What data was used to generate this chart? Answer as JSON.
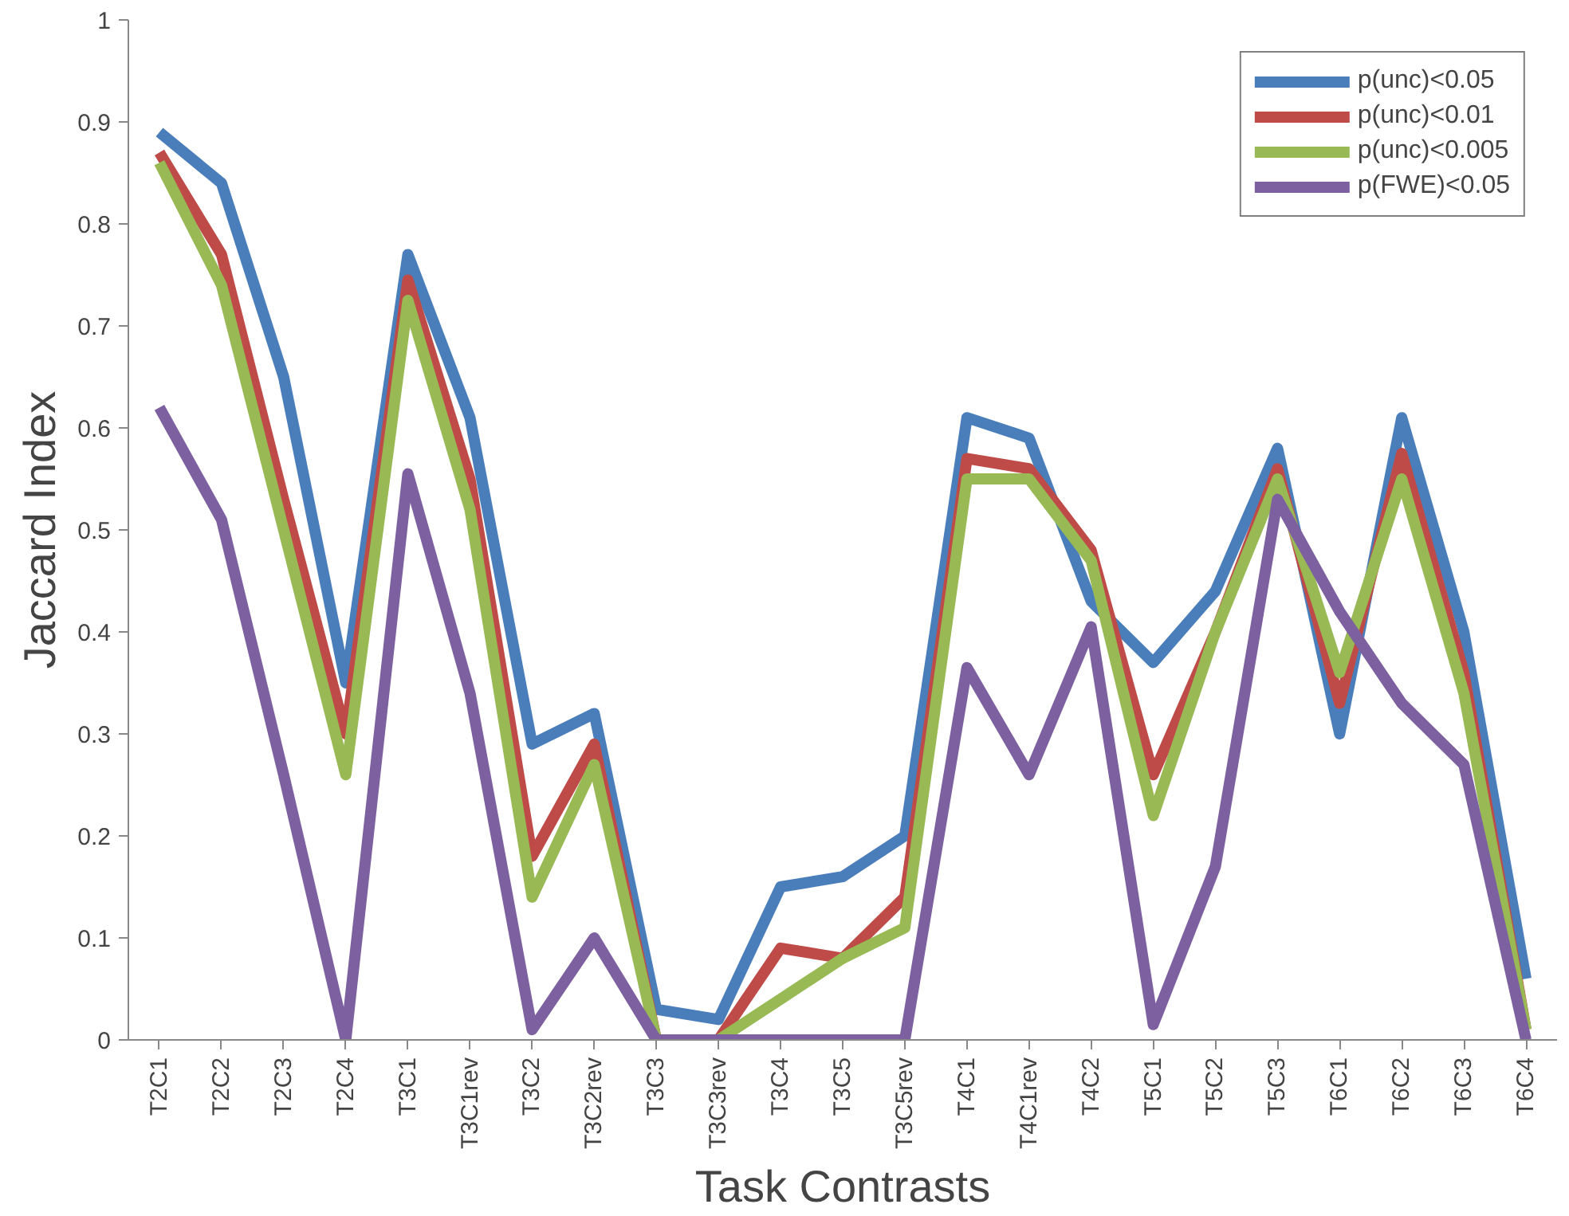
{
  "chart_data": {
    "type": "line",
    "xlabel": "Task Contrasts",
    "ylabel": "Jaccard Index",
    "categories": [
      "T2C1",
      "T2C2",
      "T2C3",
      "T2C4",
      "T3C1",
      "T3C1rev",
      "T3C2",
      "T3C2rev",
      "T3C3",
      "T3C3rev",
      "T3C4",
      "T3C5",
      "T3C5rev",
      "T4C1",
      "T4C1rev",
      "T4C2",
      "T5C1",
      "T5C2",
      "T5C3",
      "T6C1",
      "T6C2",
      "T6C3",
      "T6C4"
    ],
    "series": [
      {
        "name": "p(unc)<0.05",
        "color": "#4a7ebb",
        "values": [
          0.89,
          0.84,
          0.65,
          0.35,
          0.77,
          0.61,
          0.29,
          0.32,
          0.03,
          0.02,
          0.15,
          0.16,
          0.2,
          0.61,
          0.59,
          0.43,
          0.37,
          0.44,
          0.58,
          0.3,
          0.61,
          0.4,
          0.06
        ]
      },
      {
        "name": "p(unc)<0.01",
        "color": "#be4b48",
        "values": [
          0.87,
          0.77,
          0.53,
          0.3,
          0.745,
          0.55,
          0.18,
          0.29,
          0,
          0,
          0.09,
          0.08,
          0.14,
          0.57,
          0.56,
          0.48,
          0.26,
          0.4,
          0.56,
          0.33,
          0.575,
          0.36,
          0.01
        ]
      },
      {
        "name": "p(unc)<0.005",
        "color": "#98b954",
        "values": [
          0.86,
          0.74,
          0.5,
          0.26,
          0.725,
          0.52,
          0.14,
          0.27,
          0,
          0,
          0.04,
          0.08,
          0.11,
          0.55,
          0.55,
          0.47,
          0.22,
          0.4,
          0.55,
          0.36,
          0.55,
          0.34,
          0.01
        ]
      },
      {
        "name": "p(FWE)<0.05",
        "color": "#7d60a0",
        "values": [
          0.62,
          0.51,
          0.26,
          0,
          0.555,
          0.34,
          0.01,
          0.1,
          0,
          0,
          0,
          0,
          0,
          0.365,
          0.26,
          0.405,
          0.015,
          0.17,
          0.53,
          0.42,
          0.33,
          0.27,
          0
        ]
      }
    ],
    "ylim": [
      0,
      1
    ],
    "yticks": [
      0,
      0.1,
      0.2,
      0.3,
      0.4,
      0.5,
      0.6,
      0.7,
      0.8,
      0.9,
      1
    ],
    "grid": false,
    "legend": "top right",
    "marker": "none",
    "line_style": "solid"
  }
}
